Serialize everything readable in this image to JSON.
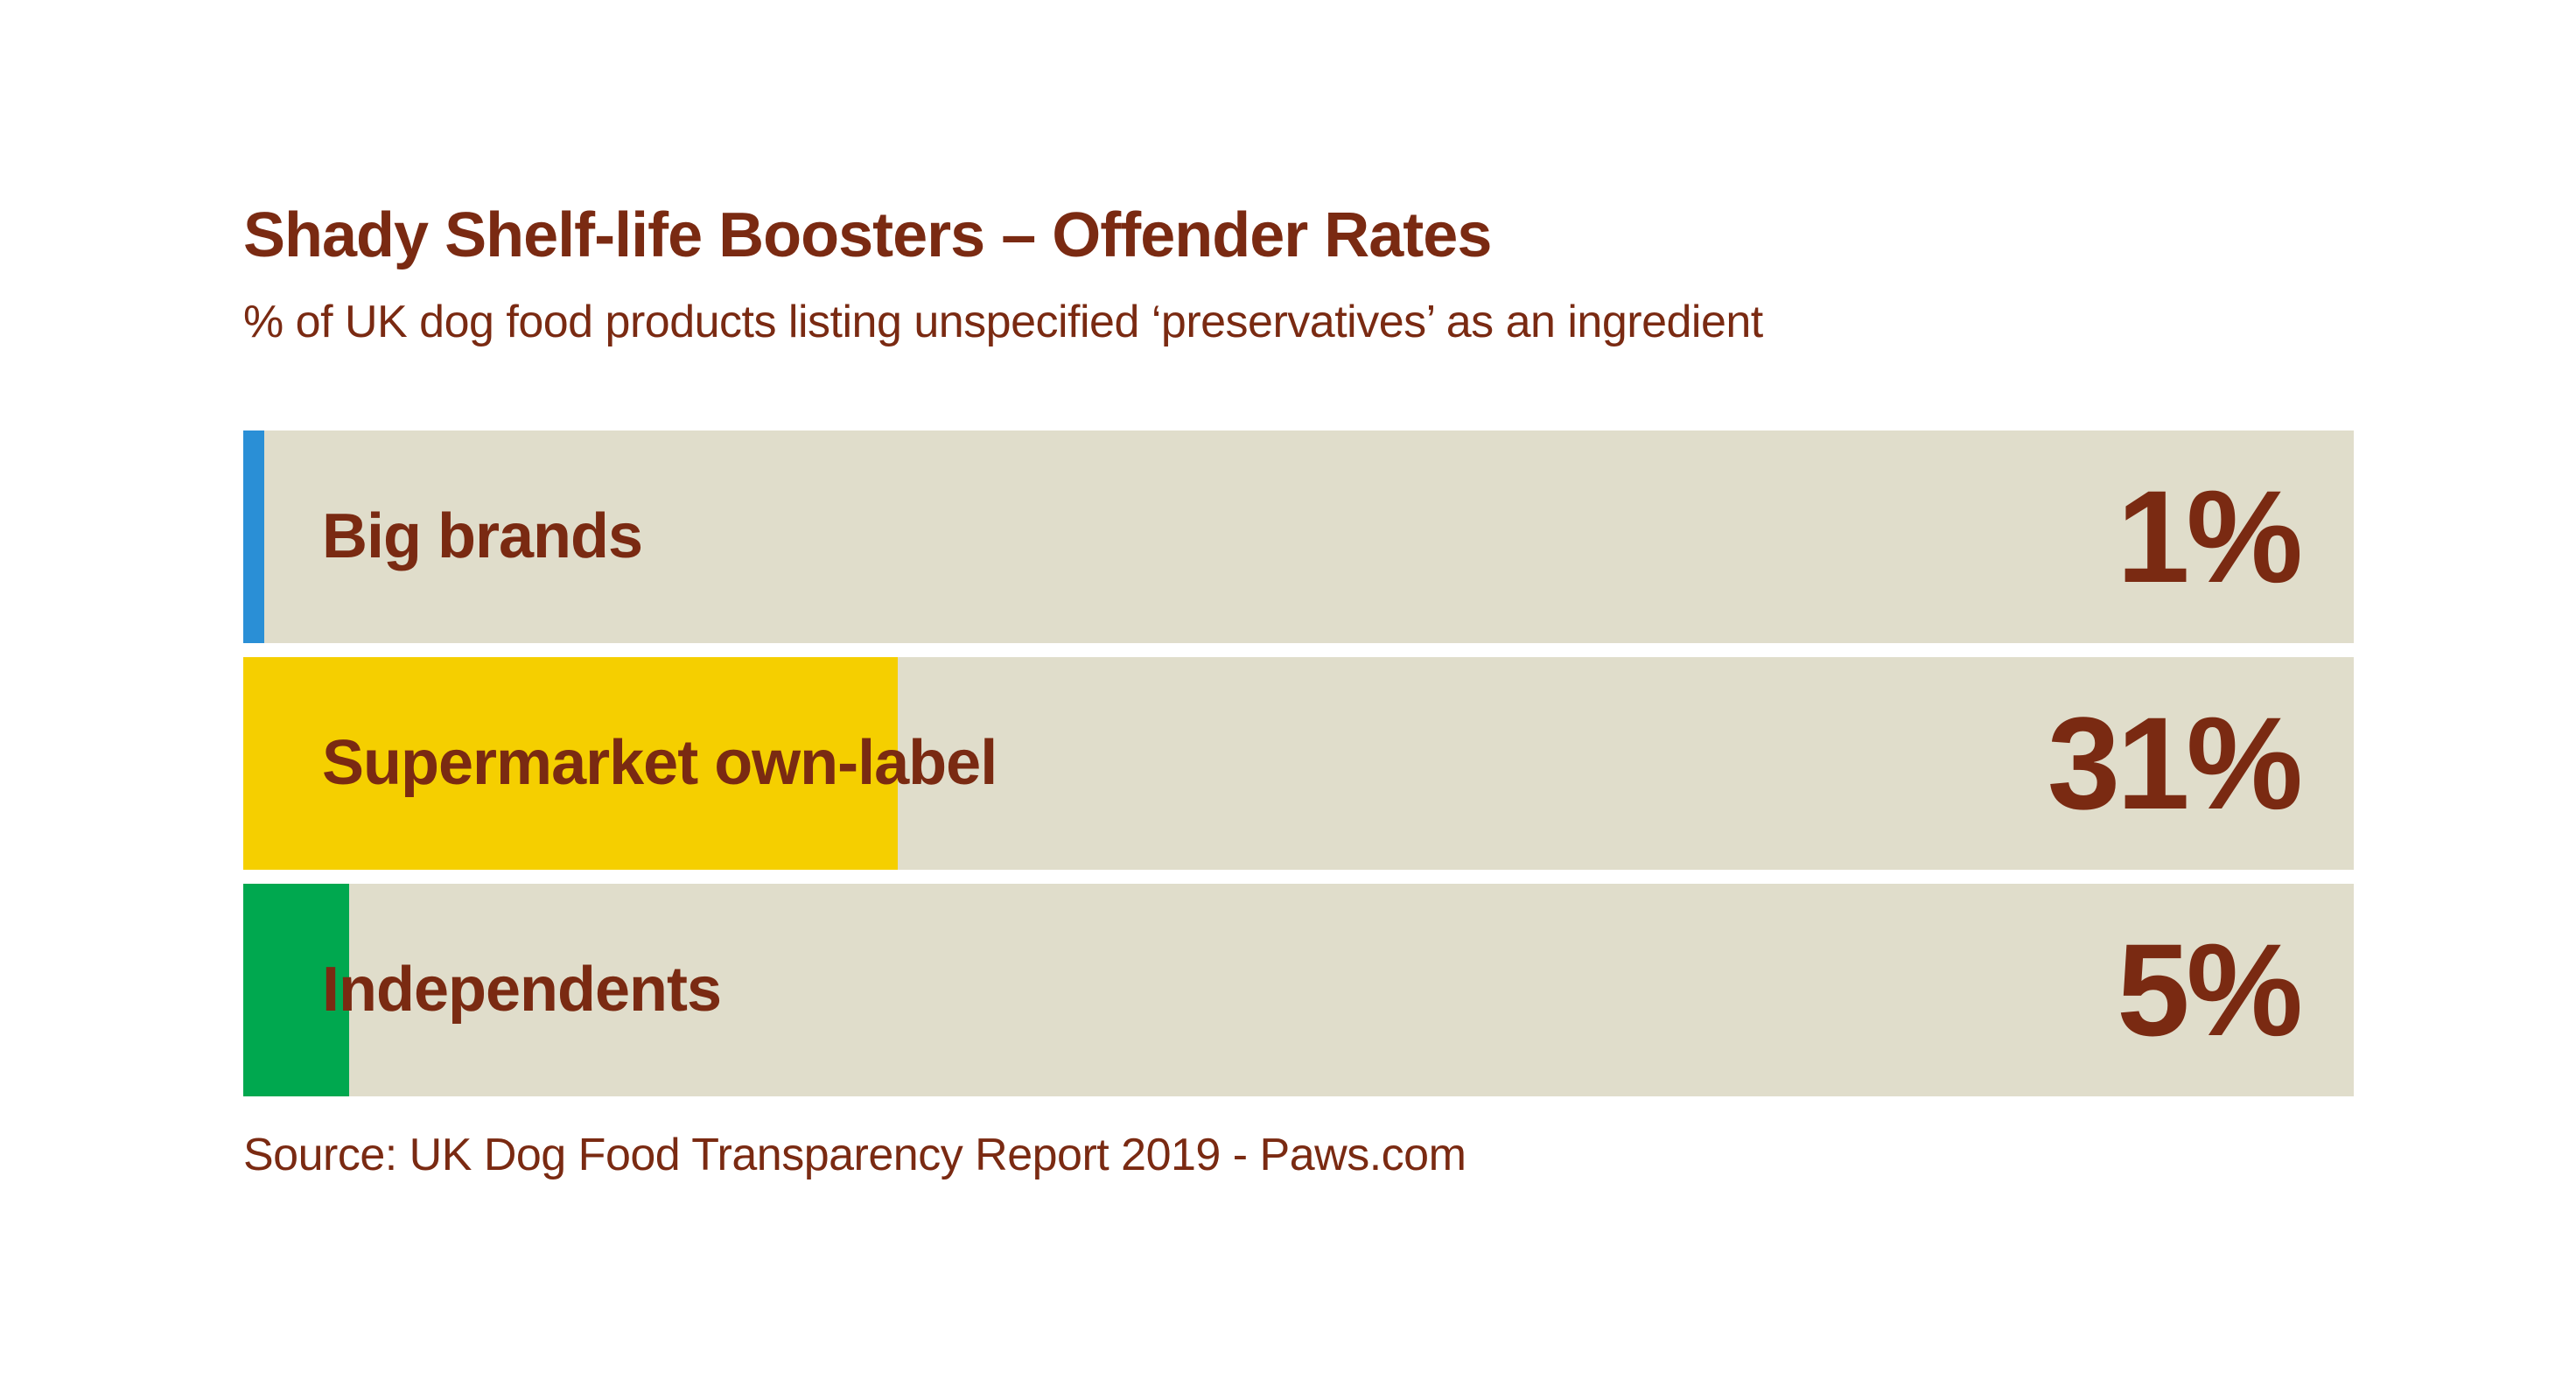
{
  "chart_data": {
    "type": "bar",
    "title": "Shady Shelf-life Boosters – Offender Rates",
    "subtitle": "% of UK dog food products listing unspecified ‘preservatives’ as an ingredient",
    "categories": [
      "Big brands",
      "Supermarket own-label",
      "Independents"
    ],
    "values": [
      1,
      31,
      5
    ],
    "value_labels": [
      "1%",
      "31%",
      "5%"
    ],
    "colors": [
      "#2a8fd6",
      "#f5cf00",
      "#00a84f"
    ],
    "xlim": [
      0,
      100
    ],
    "source": "Source: UK Dog Food Transparency Report 2019 - Paws.com"
  },
  "colors": {
    "text": "#7a2a12",
    "track": "#e0ddcb",
    "background": "#ffffff"
  }
}
